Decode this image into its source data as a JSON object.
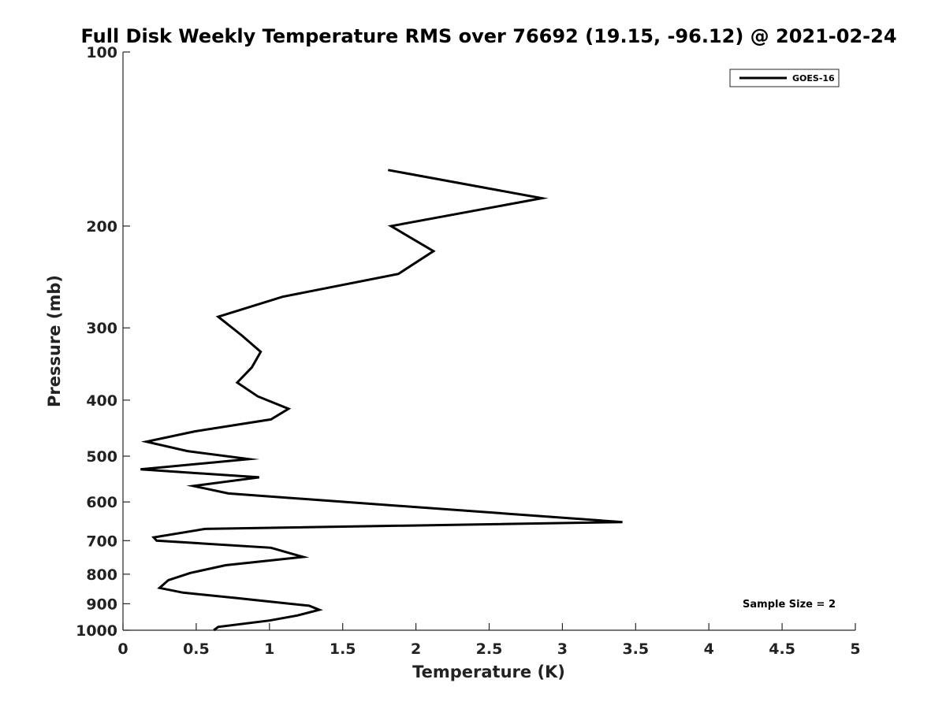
{
  "chart_data": {
    "type": "line",
    "title": "Full Disk Weekly Temperature RMS over 76692 (19.15, -96.12) @ 2021-02-24",
    "xlabel": "Temperature (K)",
    "ylabel": "Pressure (mb)",
    "xlim": [
      0,
      5
    ],
    "ylim": [
      1000,
      100
    ],
    "yscale": "log",
    "xticks": [
      "0",
      "0.5",
      "1",
      "1.5",
      "2",
      "2.5",
      "3",
      "3.5",
      "4",
      "4.5",
      "5"
    ],
    "yticks": [
      "100",
      "200",
      "300",
      "400",
      "500",
      "600",
      "700",
      "800",
      "900",
      "1000"
    ],
    "grid": false,
    "legend_position": "top-right",
    "annotation": "Sample Size = 2",
    "series": [
      {
        "name": "GOES-16",
        "color": "#000000",
        "x": [
          1.81,
          2.86,
          1.83,
          2.12,
          1.88,
          1.09,
          0.65,
          0.81,
          0.94,
          0.88,
          0.78,
          0.92,
          1.13,
          1.01,
          0.49,
          0.16,
          0.44,
          0.86,
          0.12,
          0.93,
          0.48,
          0.72,
          3.41,
          0.56,
          0.21,
          0.23,
          1.01,
          1.23,
          0.7,
          0.46,
          0.31,
          0.25,
          0.41,
          0.78,
          1.27,
          1.34,
          1.19,
          1.0,
          0.65,
          0.62
        ],
        "y": [
          160,
          179,
          200,
          221,
          242,
          265,
          287,
          309,
          330,
          351,
          373,
          394,
          414,
          432,
          453,
          472,
          490,
          506,
          527,
          544,
          563,
          580,
          650,
          668,
          691,
          700,
          720,
          747,
          772,
          796,
          819,
          845,
          861,
          880,
          907,
          922,
          943,
          962,
          987,
          1000
        ]
      }
    ]
  }
}
